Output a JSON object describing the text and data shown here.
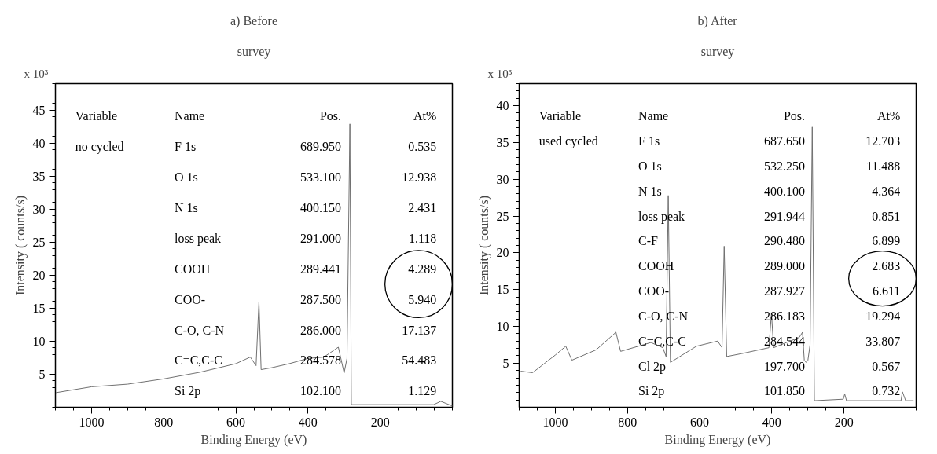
{
  "chart_data": [
    {
      "type": "line",
      "title": "a) Before",
      "subtitle": "survey",
      "xlabel": "Binding Energy (eV)",
      "ylabel": "Intensity ( counts/s)",
      "annotations": [
        "x 10³",
        "Variable",
        "no cycled",
        "Name",
        "Pos.",
        "At%",
        "F 1s",
        "689.950",
        "0.535",
        "O 1s",
        "533.100",
        "12.938",
        "N 1s",
        "400.150",
        "2.431",
        "loss peak",
        "291.000",
        "1.118",
        "COOH",
        "289.441",
        "4.289",
        "COO-",
        "287.500",
        "5.940",
        "C-O, C-N",
        "286.000",
        "17.137",
        "C=C,C-C",
        "284.578",
        "54.483",
        "Si 2p",
        "102.100",
        "1.129"
      ],
      "series": [
        {
          "color": "#707070",
          "x": [
            1100,
            1000,
            900,
            800,
            700,
            600,
            560,
            544,
            536,
            530,
            500,
            452,
            400,
            356,
            316,
            300,
            292,
            284,
            280,
            52,
            32,
            0
          ],
          "values": [
            2.2,
            3.1,
            3.5,
            4.3,
            5.3,
            6.6,
            7.6,
            6.3,
            16.0,
            5.7,
            6.0,
            6.6,
            7.4,
            7.6,
            9.1,
            5.2,
            7.4,
            42.9,
            0.4,
            0.4,
            0.9,
            0.2
          ]
        }
      ],
      "xlim": [
        1100,
        0
      ],
      "xticks": [
        1000,
        800,
        600,
        400,
        200
      ],
      "ylim": [
        0,
        49
      ],
      "yticks": [
        5,
        10,
        15,
        20,
        25,
        30,
        35,
        40,
        45
      ],
      "grid": false,
      "marker": "none",
      "line_style": "solid"
    },
    {
      "type": "line",
      "title": "b) After",
      "subtitle": "survey",
      "xlabel": "Binding Energy (eV)",
      "ylabel": "Intensity ( counts/s)",
      "annotations": [
        "x 10³",
        "Variable",
        "used cycled",
        "Name",
        "Pos.",
        "At%",
        "F 1s",
        "687.650",
        "12.703",
        "O 1s",
        "532.250",
        "11.488",
        "N 1s",
        "400.100",
        "4.364",
        "loss peak",
        "291.944",
        "0.851",
        "C-F",
        "290.480",
        "6.899",
        "COOH",
        "289.000",
        "2.683",
        "COO-",
        "287.927",
        "6.611",
        "C-O, C-N",
        "286.183",
        "19.294",
        "C=C,C-C",
        "284.544",
        "33.807",
        "Cl 2p",
        "197.700",
        "0.567",
        "Si 2p",
        "101.850",
        "0.732"
      ],
      "series": [
        {
          "color": "#707070",
          "x": [
            1095,
            1063,
            1000,
            971,
            954,
            887,
            832,
            819,
            735,
            702,
            693,
            687,
            681,
            609,
            550,
            538,
            532,
            525,
            483,
            408,
            401,
            395,
            324,
            315,
            310,
            305,
            300,
            294,
            288,
            282,
            202,
            198,
            193,
            42,
            38,
            29,
            8
          ],
          "values": [
            3.9,
            3.7,
            6.1,
            7.3,
            5.4,
            6.8,
            9.2,
            6.6,
            7.8,
            7.1,
            5.9,
            27.8,
            5.1,
            7.3,
            8.0,
            7.1,
            20.9,
            5.9,
            6.3,
            7.1,
            11.8,
            7.1,
            8.5,
            9.2,
            5.4,
            5.1,
            5.4,
            7.5,
            37.1,
            -0.1,
            0.1,
            0.8,
            -0.1,
            -0.1,
            1.1,
            -0.1,
            -0.1
          ]
        }
      ],
      "xlim": [
        1100,
        0
      ],
      "xticks": [
        1000,
        800,
        600,
        400,
        200
      ],
      "ylim": [
        -1,
        43
      ],
      "yticks": [
        5,
        10,
        15,
        20,
        25,
        30,
        35,
        40
      ],
      "grid": false,
      "marker": "none",
      "line_style": "solid"
    }
  ]
}
